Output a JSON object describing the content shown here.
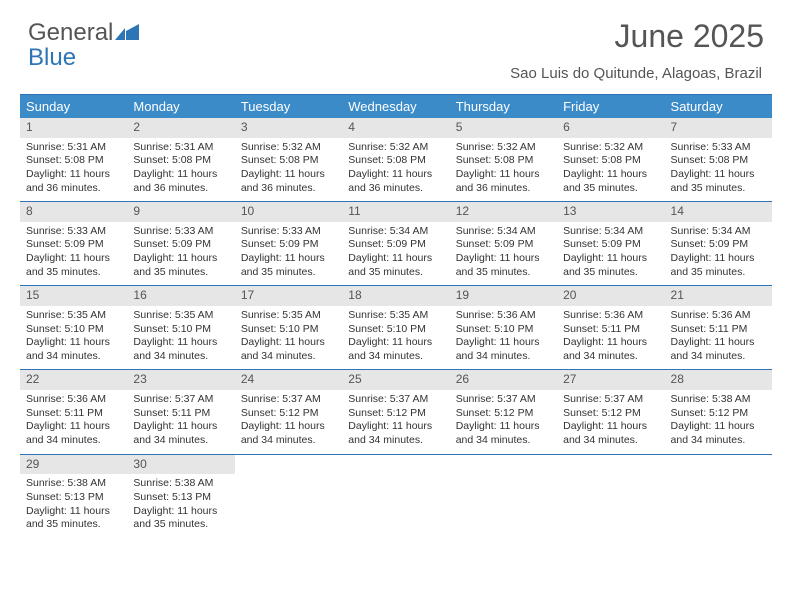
{
  "brand": {
    "word1": "General",
    "word2": "Blue"
  },
  "title": "June 2025",
  "location": "Sao Luis do Quitunde, Alagoas, Brazil",
  "colors": {
    "header_bg": "#3b8bc9",
    "rule": "#2e75b6",
    "daynum_bg": "#e6e6e6",
    "text": "#333333",
    "muted": "#555555",
    "white": "#ffffff"
  },
  "weekdays": [
    "Sunday",
    "Monday",
    "Tuesday",
    "Wednesday",
    "Thursday",
    "Friday",
    "Saturday"
  ],
  "weeks": [
    [
      {
        "n": "1",
        "sr": "Sunrise: 5:31 AM",
        "ss": "Sunset: 5:08 PM",
        "d1": "Daylight: 11 hours",
        "d2": "and 36 minutes."
      },
      {
        "n": "2",
        "sr": "Sunrise: 5:31 AM",
        "ss": "Sunset: 5:08 PM",
        "d1": "Daylight: 11 hours",
        "d2": "and 36 minutes."
      },
      {
        "n": "3",
        "sr": "Sunrise: 5:32 AM",
        "ss": "Sunset: 5:08 PM",
        "d1": "Daylight: 11 hours",
        "d2": "and 36 minutes."
      },
      {
        "n": "4",
        "sr": "Sunrise: 5:32 AM",
        "ss": "Sunset: 5:08 PM",
        "d1": "Daylight: 11 hours",
        "d2": "and 36 minutes."
      },
      {
        "n": "5",
        "sr": "Sunrise: 5:32 AM",
        "ss": "Sunset: 5:08 PM",
        "d1": "Daylight: 11 hours",
        "d2": "and 36 minutes."
      },
      {
        "n": "6",
        "sr": "Sunrise: 5:32 AM",
        "ss": "Sunset: 5:08 PM",
        "d1": "Daylight: 11 hours",
        "d2": "and 35 minutes."
      },
      {
        "n": "7",
        "sr": "Sunrise: 5:33 AM",
        "ss": "Sunset: 5:08 PM",
        "d1": "Daylight: 11 hours",
        "d2": "and 35 minutes."
      }
    ],
    [
      {
        "n": "8",
        "sr": "Sunrise: 5:33 AM",
        "ss": "Sunset: 5:09 PM",
        "d1": "Daylight: 11 hours",
        "d2": "and 35 minutes."
      },
      {
        "n": "9",
        "sr": "Sunrise: 5:33 AM",
        "ss": "Sunset: 5:09 PM",
        "d1": "Daylight: 11 hours",
        "d2": "and 35 minutes."
      },
      {
        "n": "10",
        "sr": "Sunrise: 5:33 AM",
        "ss": "Sunset: 5:09 PM",
        "d1": "Daylight: 11 hours",
        "d2": "and 35 minutes."
      },
      {
        "n": "11",
        "sr": "Sunrise: 5:34 AM",
        "ss": "Sunset: 5:09 PM",
        "d1": "Daylight: 11 hours",
        "d2": "and 35 minutes."
      },
      {
        "n": "12",
        "sr": "Sunrise: 5:34 AM",
        "ss": "Sunset: 5:09 PM",
        "d1": "Daylight: 11 hours",
        "d2": "and 35 minutes."
      },
      {
        "n": "13",
        "sr": "Sunrise: 5:34 AM",
        "ss": "Sunset: 5:09 PM",
        "d1": "Daylight: 11 hours",
        "d2": "and 35 minutes."
      },
      {
        "n": "14",
        "sr": "Sunrise: 5:34 AM",
        "ss": "Sunset: 5:09 PM",
        "d1": "Daylight: 11 hours",
        "d2": "and 35 minutes."
      }
    ],
    [
      {
        "n": "15",
        "sr": "Sunrise: 5:35 AM",
        "ss": "Sunset: 5:10 PM",
        "d1": "Daylight: 11 hours",
        "d2": "and 34 minutes."
      },
      {
        "n": "16",
        "sr": "Sunrise: 5:35 AM",
        "ss": "Sunset: 5:10 PM",
        "d1": "Daylight: 11 hours",
        "d2": "and 34 minutes."
      },
      {
        "n": "17",
        "sr": "Sunrise: 5:35 AM",
        "ss": "Sunset: 5:10 PM",
        "d1": "Daylight: 11 hours",
        "d2": "and 34 minutes."
      },
      {
        "n": "18",
        "sr": "Sunrise: 5:35 AM",
        "ss": "Sunset: 5:10 PM",
        "d1": "Daylight: 11 hours",
        "d2": "and 34 minutes."
      },
      {
        "n": "19",
        "sr": "Sunrise: 5:36 AM",
        "ss": "Sunset: 5:10 PM",
        "d1": "Daylight: 11 hours",
        "d2": "and 34 minutes."
      },
      {
        "n": "20",
        "sr": "Sunrise: 5:36 AM",
        "ss": "Sunset: 5:11 PM",
        "d1": "Daylight: 11 hours",
        "d2": "and 34 minutes."
      },
      {
        "n": "21",
        "sr": "Sunrise: 5:36 AM",
        "ss": "Sunset: 5:11 PM",
        "d1": "Daylight: 11 hours",
        "d2": "and 34 minutes."
      }
    ],
    [
      {
        "n": "22",
        "sr": "Sunrise: 5:36 AM",
        "ss": "Sunset: 5:11 PM",
        "d1": "Daylight: 11 hours",
        "d2": "and 34 minutes."
      },
      {
        "n": "23",
        "sr": "Sunrise: 5:37 AM",
        "ss": "Sunset: 5:11 PM",
        "d1": "Daylight: 11 hours",
        "d2": "and 34 minutes."
      },
      {
        "n": "24",
        "sr": "Sunrise: 5:37 AM",
        "ss": "Sunset: 5:12 PM",
        "d1": "Daylight: 11 hours",
        "d2": "and 34 minutes."
      },
      {
        "n": "25",
        "sr": "Sunrise: 5:37 AM",
        "ss": "Sunset: 5:12 PM",
        "d1": "Daylight: 11 hours",
        "d2": "and 34 minutes."
      },
      {
        "n": "26",
        "sr": "Sunrise: 5:37 AM",
        "ss": "Sunset: 5:12 PM",
        "d1": "Daylight: 11 hours",
        "d2": "and 34 minutes."
      },
      {
        "n": "27",
        "sr": "Sunrise: 5:37 AM",
        "ss": "Sunset: 5:12 PM",
        "d1": "Daylight: 11 hours",
        "d2": "and 34 minutes."
      },
      {
        "n": "28",
        "sr": "Sunrise: 5:38 AM",
        "ss": "Sunset: 5:12 PM",
        "d1": "Daylight: 11 hours",
        "d2": "and 34 minutes."
      }
    ],
    [
      {
        "n": "29",
        "sr": "Sunrise: 5:38 AM",
        "ss": "Sunset: 5:13 PM",
        "d1": "Daylight: 11 hours",
        "d2": "and 35 minutes."
      },
      {
        "n": "30",
        "sr": "Sunrise: 5:38 AM",
        "ss": "Sunset: 5:13 PM",
        "d1": "Daylight: 11 hours",
        "d2": "and 35 minutes."
      },
      null,
      null,
      null,
      null,
      null
    ]
  ]
}
